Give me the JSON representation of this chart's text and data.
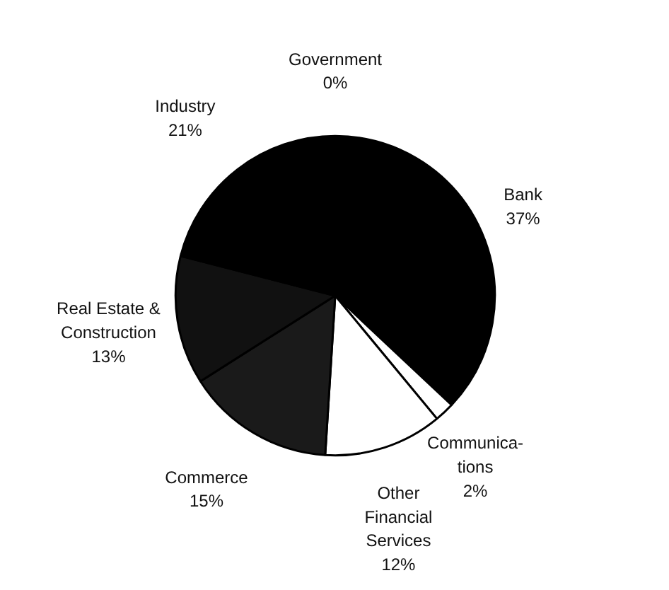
{
  "chart_data": {
    "type": "pie",
    "categories": [
      "Government",
      "Bank",
      "Communica-\ntions",
      "Other\nFinancial\nServices",
      "Commerce",
      "Real Estate &\nConstruction",
      "Industry"
    ],
    "values": [
      0,
      37,
      2,
      12,
      15,
      13,
      21
    ],
    "value_labels": [
      "0%",
      "37%",
      "2%",
      "12%",
      "15%",
      "13%",
      "21%"
    ],
    "colors": [
      "#000000",
      "#000000",
      "#ffffff",
      "#ffffff",
      "#1a1a1a",
      "#111111",
      "#000000"
    ]
  }
}
